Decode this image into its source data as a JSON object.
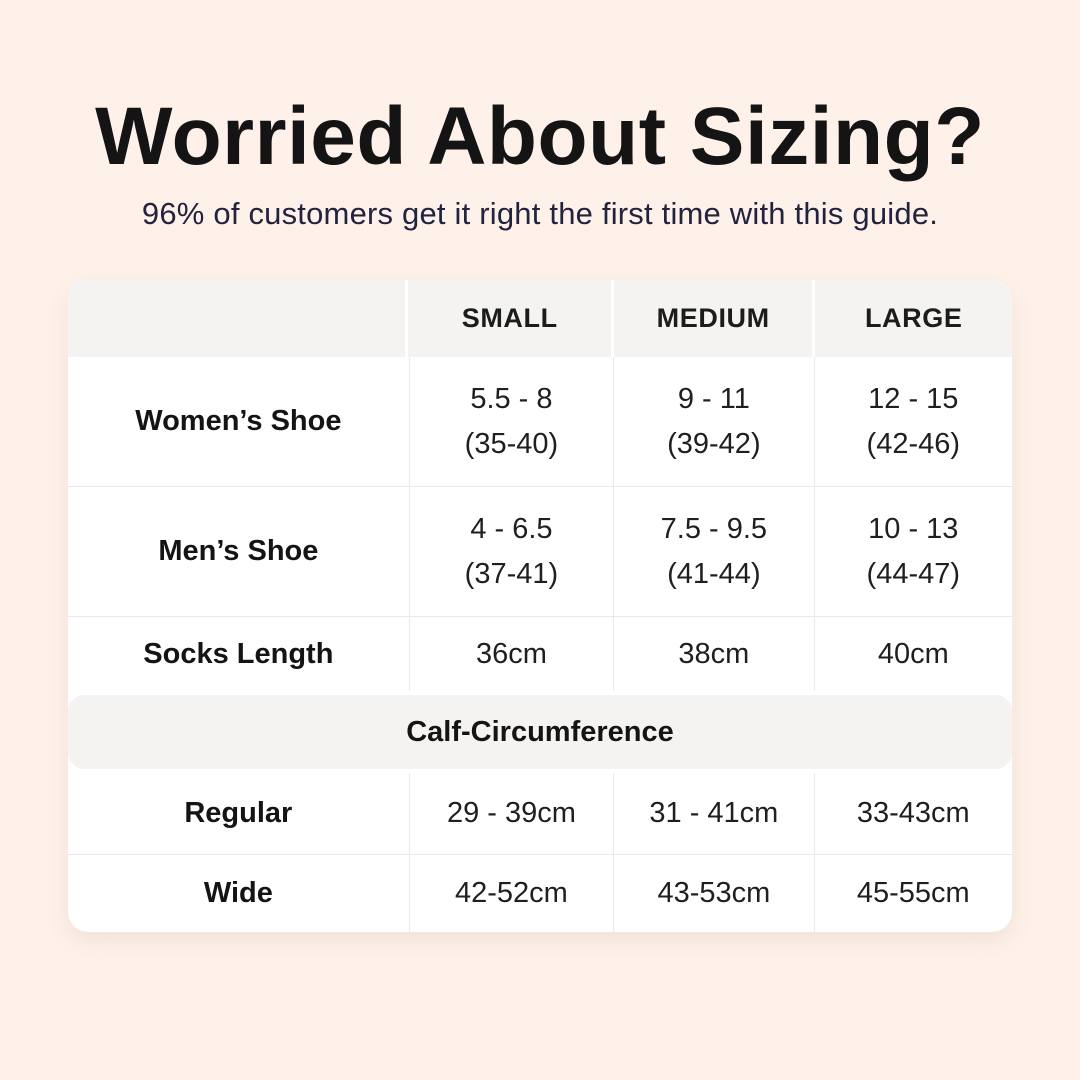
{
  "page": {
    "background_color": "#fdf1e9",
    "card_color": "#ffffff",
    "band_color": "#f4f3f1",
    "title_color": "#141414",
    "subtitle_color": "#23233f"
  },
  "header": {
    "title": "Worried About Sizing?",
    "subtitle": "96% of customers get it right the first time with this guide."
  },
  "table": {
    "columns": [
      "",
      "SMALL",
      "MEDIUM",
      "LARGE"
    ],
    "shoe_rows": [
      {
        "label": "Women’s Shoe",
        "values": [
          [
            "5.5 - 8",
            "(35-40)"
          ],
          [
            "9 - 11",
            "(39-42)"
          ],
          [
            "12 - 15",
            "(42-46)"
          ]
        ]
      },
      {
        "label": "Men’s Shoe",
        "values": [
          [
            "4 - 6.5",
            "(37-41)"
          ],
          [
            "7.5 - 9.5",
            "(41-44)"
          ],
          [
            "10 - 13",
            "(44-47)"
          ]
        ]
      },
      {
        "label": "Socks Length",
        "values": [
          [
            "36cm"
          ],
          [
            "38cm"
          ],
          [
            "40cm"
          ]
        ]
      }
    ],
    "section_header": "Calf-Circumference",
    "calf_rows": [
      {
        "label": "Regular",
        "values": [
          [
            "29 - 39cm"
          ],
          [
            "31 - 41cm"
          ],
          [
            "33-43cm"
          ]
        ]
      },
      {
        "label": "Wide",
        "values": [
          [
            "42-52cm"
          ],
          [
            "43-53cm"
          ],
          [
            "45-55cm"
          ]
        ]
      }
    ]
  }
}
